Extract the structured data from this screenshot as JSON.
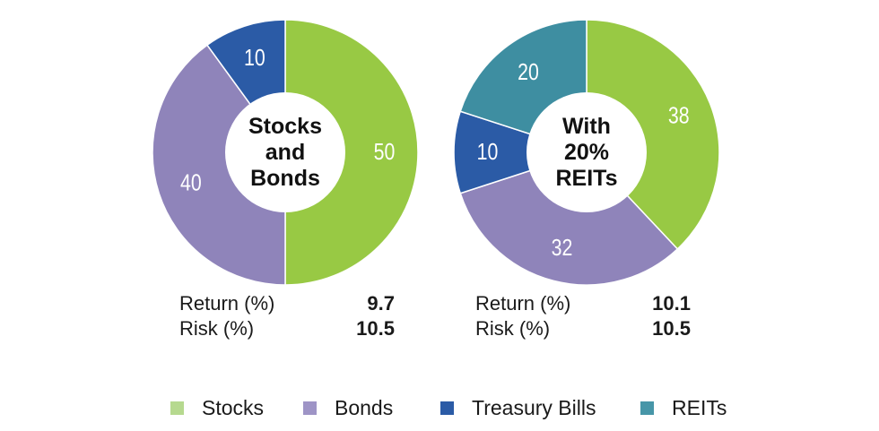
{
  "colors": {
    "Stocks": "#98c944",
    "Bonds": "#8f84ba",
    "Treasury Bills": "#2b5ba6",
    "REITs": "#3e8ea1",
    "legend_Stocks": "#b6d98f",
    "legend_Bonds": "#9e94c6",
    "legend_Treasury Bills": "#2b5ba6",
    "legend_REITs": "#4796a8"
  },
  "chart_data": [
    {
      "type": "pie",
      "style": "donut",
      "title": "Stocks and Bonds",
      "title_lines": [
        "Stocks",
        "and",
        "Bonds"
      ],
      "slices": [
        {
          "label": "Stocks",
          "value": 50
        },
        {
          "label": "Bonds",
          "value": 40
        },
        {
          "label": "Treasury Bills",
          "value": 10
        }
      ],
      "stats": [
        {
          "label": "Return (%)",
          "value": "9.7"
        },
        {
          "label": "Risk (%)",
          "value": "10.5"
        }
      ]
    },
    {
      "type": "pie",
      "style": "donut",
      "title": "With 20% REITs",
      "title_lines": [
        "With",
        "20%",
        "REITs"
      ],
      "slices": [
        {
          "label": "Stocks",
          "value": 38
        },
        {
          "label": "Bonds",
          "value": 32
        },
        {
          "label": "Treasury Bills",
          "value": 10
        },
        {
          "label": "REITs",
          "value": 20
        }
      ],
      "stats": [
        {
          "label": "Return (%)",
          "value": "10.1"
        },
        {
          "label": "Risk (%)",
          "value": "10.5"
        }
      ]
    }
  ],
  "legend": [
    "Stocks",
    "Bonds",
    "Treasury Bills",
    "REITs"
  ]
}
